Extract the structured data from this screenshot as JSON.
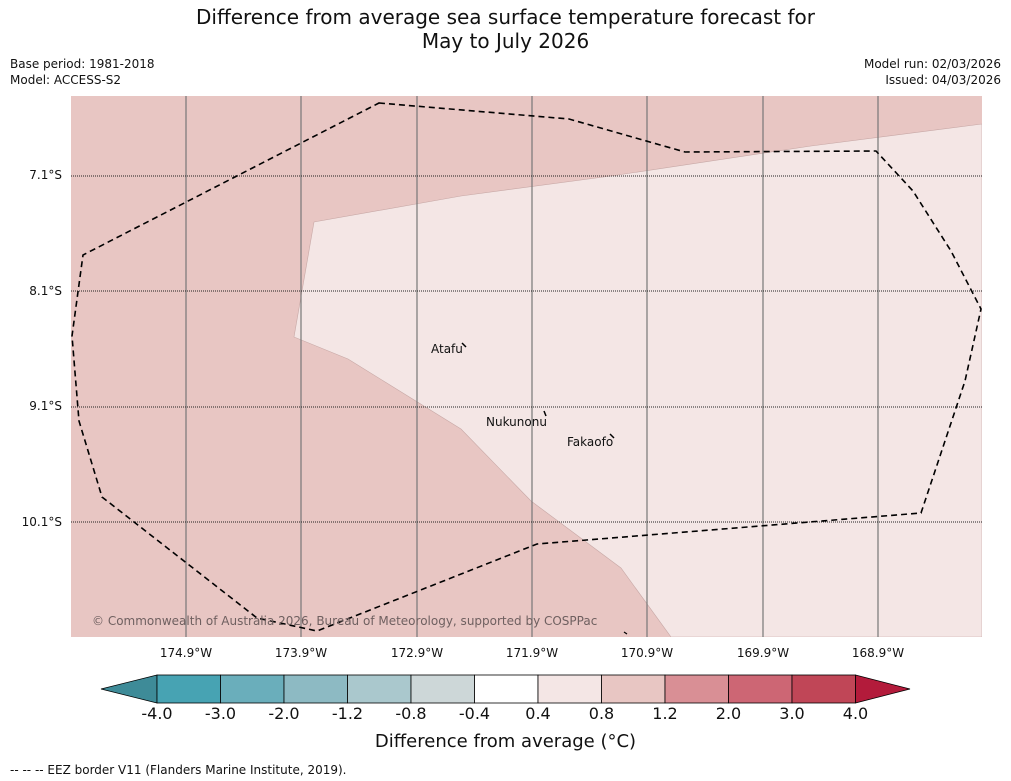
{
  "title": {
    "line1": "Difference from average sea surface temperature forecast for",
    "line2": "May to July 2026"
  },
  "meta_left": {
    "base_period": "Base period: 1981-2018",
    "model": "Model: ACCESS-S2"
  },
  "meta_right": {
    "model_run": "Model run: 02/03/2026",
    "issued": "Issued: 04/03/2026"
  },
  "map": {
    "lat_labels": [
      "7.1°S",
      "8.1°S",
      "9.1°S",
      "10.1°S"
    ],
    "lon_labels": [
      "174.9°W",
      "173.9°W",
      "172.9°W",
      "171.9°W",
      "170.9°W",
      "169.9°W",
      "168.9°W"
    ],
    "places": {
      "atafu": "Atafu",
      "nukunonu": "Nukunonu",
      "fakaofo": "Fakaofo"
    },
    "copyright": "© Commonwealth of Australia 2026, Bureau of Meteorology, supported by COSPPac",
    "colors": {
      "anomaly_1_2_to_2_0": "#e8c6c3",
      "anomaly_0_8_to_1_2": "#f4e6e5",
      "eez_border": "#000000",
      "gridline": "#777777"
    }
  },
  "colorbar": {
    "ticks": [
      "-4.0",
      "-3.0",
      "-2.0",
      "-1.2",
      "-0.8",
      "-0.4",
      "0.4",
      "0.8",
      "1.2",
      "2.0",
      "3.0",
      "4.0"
    ],
    "colors": [
      "#3e8b98",
      "#47a3b3",
      "#6aaebb",
      "#8dbac3",
      "#aac8cd",
      "#cdd7d8",
      "#ffffff",
      "#f4e6e5",
      "#e8c6c3",
      "#d98f95",
      "#cd6674",
      "#c04657",
      "#b31b3b"
    ],
    "label": "Difference from average (°C)"
  },
  "footnote": "--  --  -- EEZ border V11 (Flanders Marine Institute, 2019)."
}
